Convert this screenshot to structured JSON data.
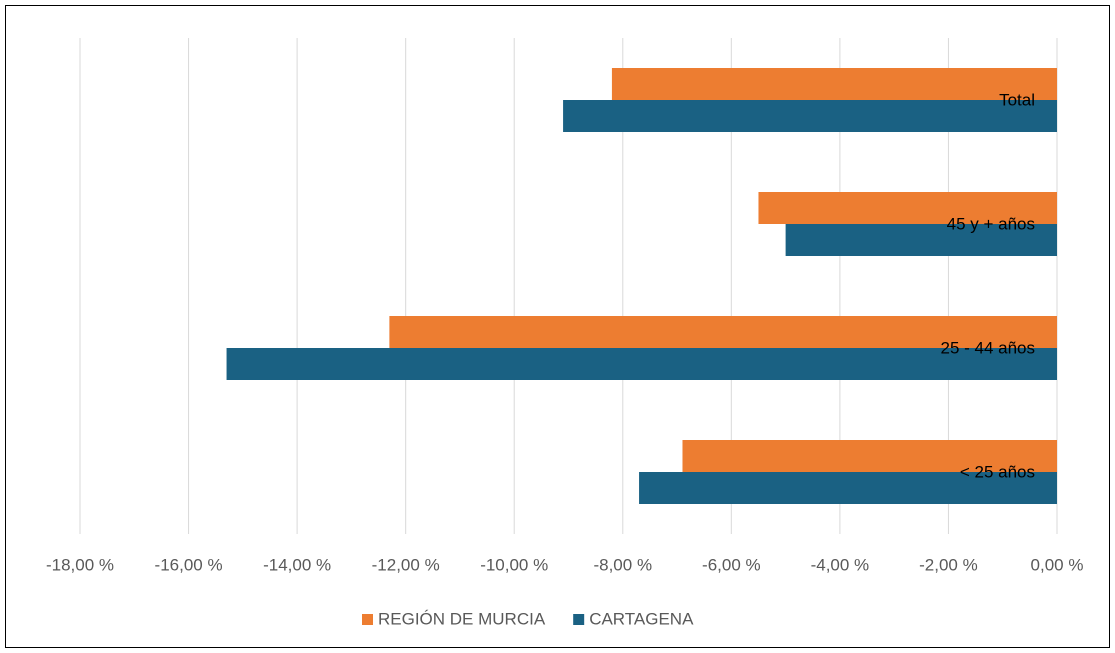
{
  "chart_data": {
    "type": "hbar",
    "categories": [
      "< 25 años",
      "25 - 44 años",
      "45 y + años",
      "Total"
    ],
    "series": [
      {
        "name": "REGIÓN DE MURCIA",
        "color": "#ed7d31",
        "values": [
          -6.9,
          -12.3,
          -5.5,
          -8.2
        ]
      },
      {
        "name": "CARTAGENA",
        "color": "#1a6183",
        "values": [
          -7.7,
          -15.3,
          -5.0,
          -9.1
        ]
      }
    ],
    "xlim": [
      -18,
      0
    ],
    "xticks": [
      {
        "value": -18,
        "label": "-18,00 %"
      },
      {
        "value": -16,
        "label": "-16,00 %"
      },
      {
        "value": -14,
        "label": "-14,00 %"
      },
      {
        "value": -12,
        "label": "-12,00 %"
      },
      {
        "value": -10,
        "label": "-10,00 %"
      },
      {
        "value": -8,
        "label": "-8,00 %"
      },
      {
        "value": -6,
        "label": "-6,00 %"
      },
      {
        "value": -4,
        "label": "-4,00 %"
      },
      {
        "value": -2,
        "label": "-2,00 %"
      },
      {
        "value": 0,
        "label": "0,00 %"
      }
    ],
    "grid": true,
    "legend": "bottom"
  }
}
